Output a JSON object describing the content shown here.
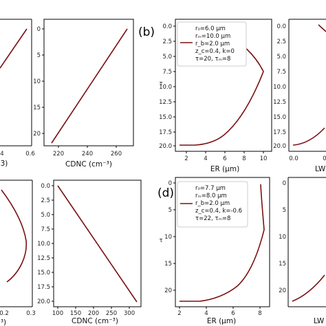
{
  "colors": {
    "curve": "#7a1010",
    "axis": "#000000",
    "legend_border": "#cccccc"
  },
  "panel_labels": {
    "b": "(b)",
    "d": "(d)"
  },
  "chart_data": [
    {
      "id": "a_left_partial",
      "type": "line",
      "x_tick_labels": [
        "4",
        "0.6"
      ],
      "xlabel_fragment": "3)",
      "ylim": [
        21.5,
        -1
      ],
      "series": [
        {
          "x": [
            0.31,
            0.4,
            0.5,
            0.6
          ],
          "y": [
            7.5,
            5.0,
            2.5,
            0.0
          ]
        }
      ]
    },
    {
      "id": "a_cdnc",
      "type": "line",
      "xlabel": "CDNC (cm⁻³)",
      "x_ticks": [
        220,
        240,
        260
      ],
      "xlim": [
        210,
        272
      ],
      "y_ticks": [
        0,
        5,
        10,
        15,
        20
      ],
      "ylim": [
        22.7,
        -1
      ],
      "series": [
        {
          "x": [
            214.5,
            267
          ],
          "y": [
            21.8,
            0
          ]
        }
      ]
    },
    {
      "id": "b_er",
      "type": "line",
      "xlabel": "ER (μm)",
      "x_ticks": [
        2,
        4,
        6,
        8,
        10
      ],
      "xlim": [
        0.8,
        10.8
      ],
      "y_ticks": [
        "0.0",
        "2.5",
        "5.0",
        "7.5",
        "10.0",
        "12.5",
        "15.0",
        "17.5",
        "20.0"
      ],
      "y_tick_values": [
        0,
        2.5,
        5,
        7.5,
        10,
        12.5,
        15,
        17.5,
        20
      ],
      "ylim": [
        20.8,
        -1
      ],
      "ylabel": "τ",
      "legend": [
        "r₀=6.0 μm",
        "rₘ=10.0 μm",
        "r_b=2.0 μm",
        "z_c=0.4, k=0",
        "τ=20, τₘ=8"
      ],
      "series": [
        {
          "x": [
            2.0,
            4.0,
            5.0,
            5.8,
            6.6,
            7.5,
            8.4,
            9.3,
            10.0,
            9.2,
            8.2,
            7.3,
            6.5,
            6.0
          ],
          "y": [
            20.0,
            20.0,
            19.8,
            19.2,
            18.2,
            16.5,
            14.5,
            11.5,
            8.0,
            5.5,
            3.5,
            1.8,
            0.6,
            0.0
          ]
        }
      ]
    },
    {
      "id": "b_lwc_partial",
      "type": "line",
      "x_tick_labels": [
        "0.0",
        "0"
      ],
      "xlabel_fragment": "LW",
      "y_ticks": [
        "0.0",
        "2.5",
        "5.0",
        "7.5",
        "10.0",
        "12.5",
        "15.0",
        "17.5",
        "20.0"
      ],
      "ylim": [
        20.8,
        -1
      ],
      "series": [
        {
          "x": [
            0.0,
            0.15,
            0.3,
            0.45
          ],
          "y": [
            20.0,
            19.6,
            18.8,
            17.3
          ]
        },
        {
          "x": [
            0.35,
            0.45
          ],
          "y": [
            0.0,
            0.8
          ]
        }
      ]
    },
    {
      "id": "c_left_partial",
      "type": "line",
      "x_tick_labels": [
        "0.2",
        "0.3"
      ],
      "xlabel_fragment": "³)",
      "ylim": [
        20.8,
        -1
      ],
      "series": [
        {
          "x": [
            0.16,
            0.24,
            0.285,
            0.29,
            0.27,
            0.22,
            0.16
          ],
          "y": [
            0.5,
            4,
            7.5,
            10,
            13,
            15.5,
            17
          ]
        }
      ]
    },
    {
      "id": "c_cdnc",
      "type": "line",
      "xlabel": "CDNC (cm⁻³)",
      "x_ticks": [
        100,
        150,
        200,
        250,
        300
      ],
      "xlim": [
        88,
        334
      ],
      "y_ticks": [
        "0.0",
        "2.5",
        "5.0",
        "7.5",
        "10.0",
        "12.5",
        "15.0",
        "17.5",
        "20.0"
      ],
      "y_tick_values": [
        0,
        2.5,
        5,
        7.5,
        10,
        12.5,
        15,
        17.5,
        20
      ],
      "ylim": [
        21,
        -1
      ],
      "series": [
        {
          "x": [
            100,
            322
          ],
          "y": [
            0,
            20.1
          ]
        }
      ]
    },
    {
      "id": "d_er",
      "type": "line",
      "xlabel": "ER (μm)",
      "x_ticks": [
        2,
        4,
        6,
        8
      ],
      "xlim": [
        1.6,
        8.8
      ],
      "y_ticks": [
        0,
        5,
        10,
        15,
        20
      ],
      "ylim": [
        23,
        -1
      ],
      "ylabel": "τ",
      "legend": [
        "r₀=7.7 μm",
        "rₘ=8.0 μm",
        "r_b=2.0 μm",
        "z_c=0.4, k=-0.6",
        "τ=22, τₘ=8"
      ],
      "series": [
        {
          "x": [
            2.0,
            3.5,
            4.5,
            5.4,
            6.2,
            7.0,
            7.7,
            8.0,
            7.85,
            7.7
          ],
          "y": [
            22.0,
            22.0,
            21.6,
            20.6,
            19.0,
            16.5,
            12.0,
            8.0,
            4.0,
            0.0
          ]
        }
      ]
    },
    {
      "id": "d_lwc_partial",
      "type": "line",
      "x_tick_labels": [],
      "xlabel_fragment": "LW",
      "y_ticks": [
        0,
        5,
        10,
        15,
        20
      ],
      "ylim": [
        23,
        -1
      ],
      "series": [
        {
          "x": [
            0.0,
            0.15,
            0.3,
            0.45
          ],
          "y": [
            22.0,
            21.0,
            19.2,
            16.5
          ]
        }
      ]
    }
  ]
}
